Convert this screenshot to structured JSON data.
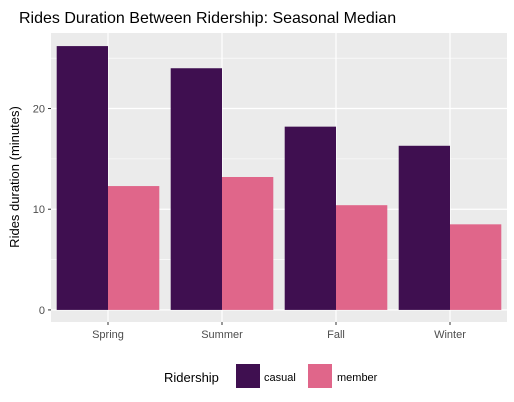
{
  "chart_data": {
    "type": "bar",
    "title": "Rides Duration Between Ridership: Seasonal Median",
    "xlabel": "",
    "ylabel": "Rides duration (minutes)",
    "categories": [
      "Spring",
      "Summer",
      "Fall",
      "Winter"
    ],
    "series": [
      {
        "name": "casual",
        "color": "#3f0f50",
        "values": [
          26.2,
          24.0,
          18.2,
          16.3
        ]
      },
      {
        "name": "member",
        "color": "#e0668a",
        "values": [
          12.3,
          13.2,
          10.4,
          8.5
        ]
      }
    ],
    "ylim": [
      -1.2,
      27.5
    ],
    "yticks": [
      0,
      10,
      20
    ],
    "ytick_labels": [
      "0",
      "10",
      "20"
    ],
    "grid": true,
    "panel_background": "#ebebeb",
    "legend": {
      "title": "Ridership",
      "position": "bottom"
    }
  }
}
